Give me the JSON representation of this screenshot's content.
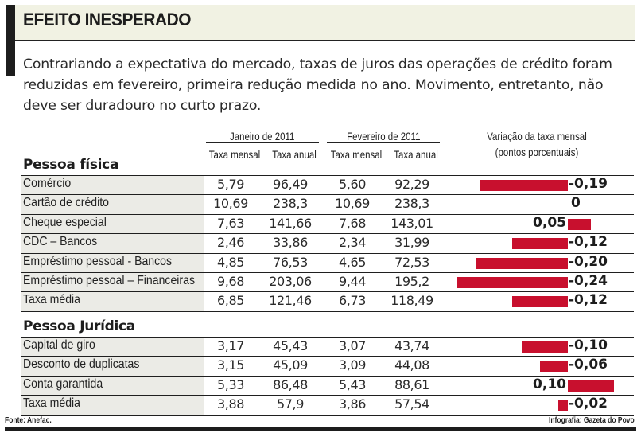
{
  "header": {
    "title": "EFEITO INESPERADO",
    "lead": "Contrariando a expectativa do mercado, taxas de juros das operações de crédito foram reduzidas em fevereiro, primeira redução medida no ano. Movimento, entretanto, não deve ser duradouro no curto prazo."
  },
  "columns": {
    "jan_group": "Janeiro de 2011",
    "feb_group": "Fevereiro de 2011",
    "monthly": "Taxa mensal",
    "annual": "Taxa anual",
    "variation_line1": "Variação da taxa mensal",
    "variation_line2": "(pontos porcentuais)"
  },
  "footer": {
    "source": "Fonte: Anefac.",
    "credit": "Infografia: Gazeta do Povo"
  },
  "colors": {
    "bar": "#c8102e",
    "title_bg": "#f1f2e3",
    "label_bg": "#ebebe6"
  },
  "chart_data": {
    "type": "table",
    "title": "EFEITO INESPERADO",
    "value_label": "Variação da taxa mensal (pontos porcentuais)",
    "sections": [
      {
        "name": "Pessoa física",
        "rows": [
          {
            "label": "Comércio",
            "jan_mensal": "5,79",
            "jan_anual": "96,49",
            "fev_mensal": "5,60",
            "fev_anual": "92,29",
            "variacao": -0.19,
            "variacao_label": "-0,19"
          },
          {
            "label": "Cartão de crédito",
            "jan_mensal": "10,69",
            "jan_anual": "238,3",
            "fev_mensal": "10,69",
            "fev_anual": "238,3",
            "variacao": 0,
            "variacao_label": "0"
          },
          {
            "label": "Cheque especial",
            "jan_mensal": "7,63",
            "jan_anual": "141,66",
            "fev_mensal": "7,68",
            "fev_anual": "143,01",
            "variacao": 0.05,
            "variacao_label": "0,05"
          },
          {
            "label": "CDC – Bancos",
            "jan_mensal": "2,46",
            "jan_anual": "33,86",
            "fev_mensal": "2,34",
            "fev_anual": "31,99",
            "variacao": -0.12,
            "variacao_label": "-0,12"
          },
          {
            "label": "Empréstimo pessoal - Bancos",
            "jan_mensal": "4,85",
            "jan_anual": "76,53",
            "fev_mensal": "4,65",
            "fev_anual": "72,53",
            "variacao": -0.2,
            "variacao_label": "-0,20"
          },
          {
            "label": "Empréstimo pessoal – Financeiras",
            "jan_mensal": "9,68",
            "jan_anual": "203,06",
            "fev_mensal": "9,44",
            "fev_anual": "195,2",
            "variacao": -0.24,
            "variacao_label": "-0,24"
          },
          {
            "label": "Taxa média",
            "jan_mensal": "6,85",
            "jan_anual": "121,46",
            "fev_mensal": "6,73",
            "fev_anual": "118,49",
            "variacao": -0.12,
            "variacao_label": "-0,12"
          }
        ]
      },
      {
        "name": "Pessoa Jurídica",
        "rows": [
          {
            "label": "Capital de giro",
            "jan_mensal": "3,17",
            "jan_anual": "45,43",
            "fev_mensal": "3,07",
            "fev_anual": "43,74",
            "variacao": -0.1,
            "variacao_label": "-0,10"
          },
          {
            "label": "Desconto de duplicatas",
            "jan_mensal": "3,15",
            "jan_anual": "45,09",
            "fev_mensal": "3,09",
            "fev_anual": "44,08",
            "variacao": -0.06,
            "variacao_label": "-0,06"
          },
          {
            "label": "Conta garantida",
            "jan_mensal": "5,33",
            "jan_anual": "86,48",
            "fev_mensal": "5,43",
            "fev_anual": "88,61",
            "variacao": 0.1,
            "variacao_label": "0,10"
          },
          {
            "label": "Taxa média",
            "jan_mensal": "3,88",
            "jan_anual": "57,9",
            "fev_mensal": "3,86",
            "fev_anual": "57,54",
            "variacao": -0.02,
            "variacao_label": "-0,02"
          }
        ]
      }
    ]
  }
}
